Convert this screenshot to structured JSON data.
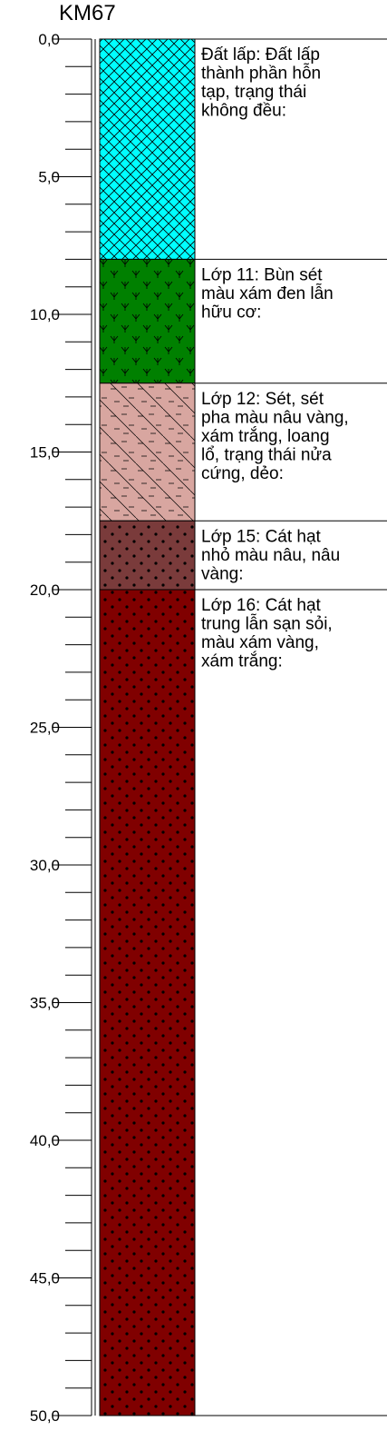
{
  "title": "KM67",
  "depth_labels": [
    "0,0",
    "5,0",
    "10,0",
    "15,0",
    "20,0",
    "25,0",
    "30,0",
    "35,0",
    "40,0",
    "45,0",
    "50,0"
  ],
  "depth_range": [
    0,
    50
  ],
  "minor_tick_step": 1,
  "layers": [
    {
      "name": "Đất lấp",
      "top": 0.0,
      "bottom": 8.0,
      "pattern": "crosshatch",
      "color": "#00FFFF",
      "description_lines": [
        "Đất lấp: Đất lấp",
        "thành phần hỗn",
        "tạp, trạng thái",
        "không đều:"
      ]
    },
    {
      "name": "Lớp 11",
      "top": 8.0,
      "bottom": 12.5,
      "pattern": "marsh",
      "color": "#008000",
      "description_lines": [
        "Lớp 11: Bùn sét",
        "màu xám đen lẫn",
        "hữu cơ:"
      ]
    },
    {
      "name": "Lớp 12",
      "top": 12.5,
      "bottom": 17.5,
      "pattern": "clay",
      "color": "#D8A6A0",
      "description_lines": [
        "Lớp 12: Sét, sét",
        "pha màu nâu vàng,",
        "xám trắng, loang",
        "lổ, trạng thái nửa",
        "cứng, dẻo:"
      ]
    },
    {
      "name": "Lớp 15",
      "top": 17.5,
      "bottom": 20.0,
      "pattern": "dots",
      "color": "#7A3B3B",
      "description_lines": [
        "Lớp 15: Cát hạt",
        "nhỏ màu nâu, nâu",
        "vàng:"
      ]
    },
    {
      "name": "Lớp 16",
      "top": 20.0,
      "bottom": 50.0,
      "pattern": "dots",
      "color": "#800000",
      "description_lines": [
        "Lớp 16: Cát hạt",
        "trung lẫn sạn sỏi,",
        "màu xám vàng,",
        "xám trắng:"
      ]
    }
  ]
}
